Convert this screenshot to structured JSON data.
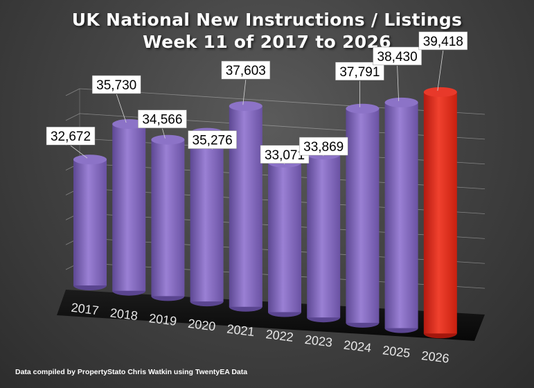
{
  "title_line1": "UK National New Instructions / Listings",
  "title_line2": "Week 11 of 2017 to 2026",
  "footnote": "Data compiled by PropertyStato Chris Watkin using TwentyEA Data",
  "colors": {
    "bar": "#8a6fc4",
    "highlight": "#e02a1c",
    "label_bg": "#ffffff",
    "label_text": "#000000",
    "tick_text": "#e6e6e6"
  },
  "chart_data": {
    "type": "bar",
    "style": "3d-cylinder",
    "categories": [
      "2017",
      "2018",
      "2019",
      "2020",
      "2021",
      "2022",
      "2023",
      "2024",
      "2025",
      "2026"
    ],
    "values": [
      32672,
      35730,
      34566,
      35276,
      37603,
      33071,
      33869,
      37791,
      38430,
      39418
    ],
    "value_labels": [
      "32,672",
      "35,730",
      "34,566",
      "35,276",
      "37,603",
      "33,071",
      "33,869",
      "37,791",
      "38,430",
      "39,418"
    ],
    "highlight_category": "2026",
    "title": "UK National New Instructions / Listings Week 11 of 2017 to 2026",
    "xlabel": "",
    "ylabel": "",
    "grid": true,
    "legend": "none"
  }
}
